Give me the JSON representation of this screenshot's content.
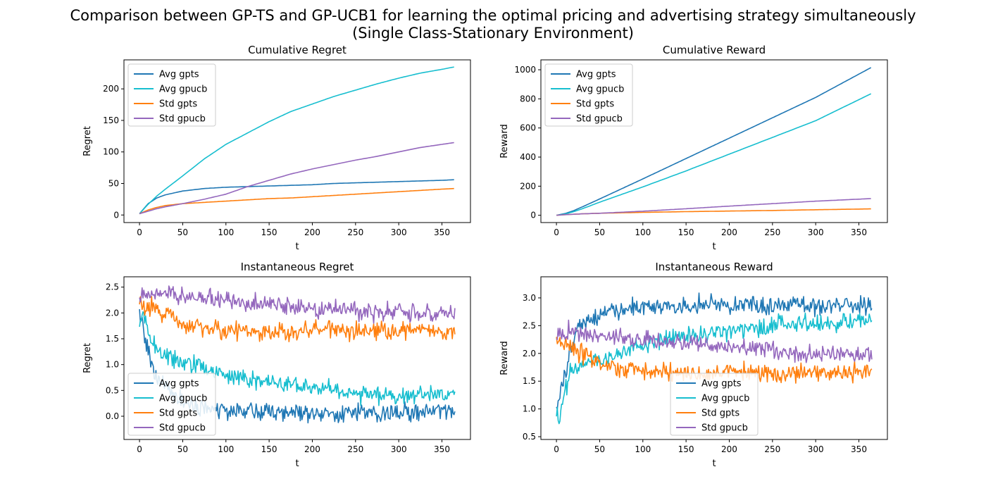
{
  "figure": {
    "title_line1": "Comparison between GP-TS and GP-UCB1 for learning the optimal pricing and advertising strategy simultaneously",
    "title_line2": "(Single Class-Stationary Environment)"
  },
  "colors": {
    "avg_gpts": "#1f77b4",
    "avg_gpucb": "#17becf",
    "std_gpts": "#ff7f0e",
    "std_gpucb": "#9467bd"
  },
  "chart_data": [
    {
      "type": "line",
      "title": "Cumulative Regret",
      "xlabel": "t",
      "ylabel": "Regret",
      "xlim": [
        -18,
        383
      ],
      "ylim": [
        -12,
        246
      ],
      "xticks": [
        0,
        50,
        100,
        150,
        200,
        250,
        300,
        350
      ],
      "yticks": [
        0,
        50,
        100,
        150,
        200
      ],
      "grid": false,
      "legend_position": "upper-left",
      "series": [
        {
          "name": "Avg gpts",
          "color": "#1f77b4",
          "x": [
            0,
            10,
            20,
            30,
            50,
            75,
            100,
            125,
            150,
            175,
            200,
            225,
            250,
            275,
            300,
            325,
            350,
            365
          ],
          "y": [
            2,
            18,
            27,
            32,
            38,
            42,
            44,
            45,
            46,
            47,
            48,
            50,
            51,
            52,
            53,
            54,
            55,
            56
          ]
        },
        {
          "name": "Avg gpucb",
          "color": "#17becf",
          "x": [
            0,
            10,
            20,
            30,
            50,
            75,
            100,
            125,
            150,
            175,
            200,
            225,
            250,
            275,
            300,
            325,
            350,
            365
          ],
          "y": [
            2,
            17,
            30,
            41,
            62,
            89,
            112,
            130,
            148,
            164,
            176,
            188,
            198,
            208,
            217,
            225,
            231,
            235
          ]
        },
        {
          "name": "Std gpts",
          "color": "#ff7f0e",
          "x": [
            0,
            10,
            20,
            30,
            50,
            75,
            100,
            125,
            150,
            175,
            200,
            225,
            250,
            275,
            300,
            325,
            350,
            365
          ],
          "y": [
            2,
            8,
            12,
            15,
            18,
            20,
            22,
            24,
            26,
            27,
            29,
            31,
            33,
            35,
            37,
            39,
            41,
            42
          ]
        },
        {
          "name": "Std gpucb",
          "color": "#9467bd",
          "x": [
            0,
            10,
            20,
            30,
            50,
            75,
            100,
            125,
            150,
            175,
            200,
            225,
            250,
            275,
            300,
            325,
            350,
            365
          ],
          "y": [
            2,
            6,
            10,
            13,
            18,
            25,
            33,
            45,
            55,
            65,
            73,
            80,
            87,
            93,
            100,
            107,
            112,
            115
          ]
        }
      ]
    },
    {
      "type": "line",
      "title": "Cumulative Reward",
      "xlabel": "t",
      "ylabel": "Reward",
      "xlim": [
        -18,
        383
      ],
      "ylim": [
        -50,
        1068
      ],
      "xticks": [
        0,
        50,
        100,
        150,
        200,
        250,
        300,
        350
      ],
      "yticks": [
        0,
        200,
        400,
        600,
        800,
        1000
      ],
      "grid": false,
      "legend_position": "upper-left",
      "series": [
        {
          "name": "Avg gpts",
          "color": "#1f77b4",
          "x": [
            0,
            10,
            20,
            30,
            50,
            100,
            150,
            200,
            250,
            300,
            365
          ],
          "y": [
            0,
            12,
            32,
            58,
            112,
            250,
            390,
            530,
            670,
            810,
            1018
          ]
        },
        {
          "name": "Avg gpucb",
          "color": "#17becf",
          "x": [
            0,
            10,
            20,
            30,
            50,
            100,
            150,
            200,
            250,
            300,
            365
          ],
          "y": [
            0,
            8,
            25,
            45,
            90,
            195,
            305,
            420,
            535,
            650,
            838
          ]
        },
        {
          "name": "Std gpts",
          "color": "#ff7f0e",
          "x": [
            0,
            10,
            20,
            30,
            50,
            100,
            150,
            200,
            250,
            300,
            365
          ],
          "y": [
            0,
            4,
            7,
            10,
            14,
            20,
            25,
            29,
            33,
            38,
            44
          ]
        },
        {
          "name": "Std gpucb",
          "color": "#9467bd",
          "x": [
            0,
            10,
            20,
            30,
            50,
            100,
            150,
            200,
            250,
            300,
            365
          ],
          "y": [
            0,
            4,
            7,
            10,
            14,
            28,
            45,
            63,
            80,
            97,
            115
          ]
        }
      ]
    },
    {
      "type": "line",
      "title": "Instantaneous Regret",
      "xlabel": "t",
      "ylabel": "Regret",
      "xlim": [
        -18,
        383
      ],
      "ylim": [
        -0.45,
        2.7
      ],
      "xticks": [
        0,
        50,
        100,
        150,
        200,
        250,
        300,
        350
      ],
      "yticks": [
        0.0,
        0.5,
        1.0,
        1.5,
        2.0,
        2.5
      ],
      "ytick_labels": [
        "0.0",
        "0.5",
        "1.0",
        "1.5",
        "2.0",
        "2.5"
      ],
      "grid": false,
      "legend_position": "lower-left",
      "series": [
        {
          "name": "Avg gpts",
          "color": "#1f77b4",
          "x": [
            0,
            5,
            10,
            15,
            20,
            30,
            40,
            50,
            60,
            75,
            90,
            110,
            130,
            150,
            175,
            200,
            225,
            250,
            275,
            300,
            325,
            350,
            365
          ],
          "y": [
            2.0,
            1.6,
            1.3,
            0.9,
            0.7,
            0.5,
            0.4,
            0.3,
            0.2,
            0.15,
            0.12,
            0.1,
            0.1,
            0.08,
            0.06,
            0.1,
            0.05,
            0.1,
            0.05,
            0.08,
            0.05,
            0.1,
            0.1
          ]
        },
        {
          "name": "Avg gpucb",
          "color": "#17becf",
          "x": [
            0,
            5,
            10,
            15,
            20,
            30,
            40,
            50,
            60,
            75,
            90,
            110,
            130,
            150,
            175,
            200,
            225,
            250,
            275,
            300,
            325,
            350,
            365
          ],
          "y": [
            1.8,
            2.0,
            1.7,
            1.4,
            1.25,
            1.2,
            1.1,
            1.05,
            1.0,
            0.95,
            0.85,
            0.75,
            0.7,
            0.65,
            0.6,
            0.55,
            0.5,
            0.45,
            0.45,
            0.4,
            0.4,
            0.4,
            0.45
          ]
        },
        {
          "name": "Std gpts",
          "color": "#ff7f0e",
          "x": [
            0,
            5,
            10,
            15,
            20,
            30,
            40,
            50,
            60,
            75,
            90,
            110,
            130,
            150,
            175,
            200,
            225,
            250,
            275,
            300,
            325,
            350,
            365
          ],
          "y": [
            2.2,
            2.1,
            2.15,
            2.15,
            2.1,
            2.0,
            1.9,
            1.8,
            1.75,
            1.7,
            1.7,
            1.65,
            1.65,
            1.65,
            1.65,
            1.65,
            1.7,
            1.65,
            1.65,
            1.65,
            1.65,
            1.65,
            1.7
          ]
        },
        {
          "name": "Std gpucb",
          "color": "#9467bd",
          "x": [
            0,
            5,
            10,
            15,
            20,
            30,
            40,
            50,
            60,
            75,
            90,
            110,
            130,
            150,
            175,
            200,
            225,
            250,
            275,
            300,
            325,
            350,
            365
          ],
          "y": [
            2.3,
            2.35,
            2.35,
            2.4,
            2.4,
            2.4,
            2.35,
            2.3,
            2.3,
            2.3,
            2.25,
            2.25,
            2.2,
            2.2,
            2.15,
            2.1,
            2.1,
            2.05,
            2.0,
            2.0,
            2.0,
            1.95,
            2.0
          ]
        }
      ]
    },
    {
      "type": "line",
      "title": "Instantaneous Reward",
      "xlabel": "t",
      "ylabel": "Reward",
      "xlim": [
        -18,
        383
      ],
      "ylim": [
        0.45,
        3.38
      ],
      "xticks": [
        0,
        50,
        100,
        150,
        200,
        250,
        300,
        350
      ],
      "yticks": [
        0.5,
        1.0,
        1.5,
        2.0,
        2.5,
        3.0
      ],
      "ytick_labels": [
        "0.5",
        "1.0",
        "1.5",
        "2.0",
        "2.5",
        "3.0"
      ],
      "grid": false,
      "legend_position": "lower-center",
      "series": [
        {
          "name": "Avg gpts",
          "color": "#1f77b4",
          "x": [
            0,
            5,
            10,
            15,
            20,
            30,
            40,
            50,
            60,
            75,
            90,
            110,
            130,
            150,
            175,
            200,
            225,
            250,
            275,
            300,
            325,
            350,
            365
          ],
          "y": [
            1.0,
            1.3,
            1.6,
            2.0,
            2.3,
            2.5,
            2.6,
            2.7,
            2.75,
            2.8,
            2.85,
            2.85,
            2.85,
            2.85,
            2.9,
            2.85,
            2.9,
            2.85,
            2.9,
            2.85,
            2.9,
            2.85,
            2.85
          ]
        },
        {
          "name": "Avg gpucb",
          "color": "#17becf",
          "x": [
            0,
            5,
            10,
            15,
            20,
            30,
            40,
            50,
            60,
            75,
            90,
            110,
            130,
            150,
            175,
            200,
            225,
            250,
            275,
            300,
            325,
            350,
            365
          ],
          "y": [
            0.8,
            0.9,
            1.3,
            1.6,
            1.7,
            1.8,
            1.85,
            1.9,
            1.95,
            2.0,
            2.1,
            2.2,
            2.25,
            2.3,
            2.35,
            2.4,
            2.45,
            2.5,
            2.55,
            2.55,
            2.55,
            2.6,
            2.6
          ]
        },
        {
          "name": "Std gpts",
          "color": "#ff7f0e",
          "x": [
            0,
            5,
            10,
            15,
            20,
            30,
            40,
            50,
            60,
            75,
            90,
            110,
            130,
            150,
            175,
            200,
            225,
            250,
            275,
            300,
            325,
            350,
            365
          ],
          "y": [
            2.2,
            2.1,
            2.15,
            2.15,
            2.1,
            2.0,
            1.9,
            1.8,
            1.75,
            1.7,
            1.7,
            1.65,
            1.65,
            1.65,
            1.65,
            1.65,
            1.7,
            1.65,
            1.65,
            1.65,
            1.65,
            1.65,
            1.7
          ]
        },
        {
          "name": "Std gpucb",
          "color": "#9467bd",
          "x": [
            0,
            5,
            10,
            15,
            20,
            30,
            40,
            50,
            60,
            75,
            90,
            110,
            130,
            150,
            175,
            200,
            225,
            250,
            275,
            300,
            325,
            350,
            365
          ],
          "y": [
            2.3,
            2.35,
            2.35,
            2.4,
            2.4,
            2.4,
            2.35,
            2.3,
            2.3,
            2.3,
            2.25,
            2.25,
            2.2,
            2.2,
            2.15,
            2.1,
            2.1,
            2.05,
            2.0,
            2.0,
            2.0,
            1.95,
            2.0
          ]
        }
      ]
    }
  ]
}
